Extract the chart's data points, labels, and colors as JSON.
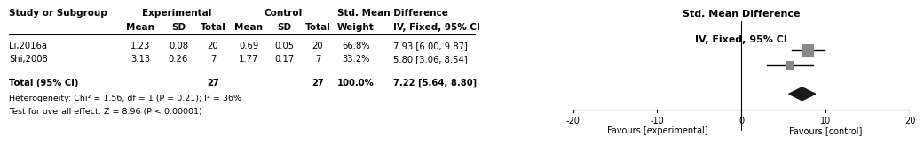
{
  "studies": [
    {
      "name": "Li,2016a",
      "exp_mean": "1.23",
      "exp_sd": "0.08",
      "exp_total": "20",
      "ctrl_mean": "0.69",
      "ctrl_sd": "0.05",
      "ctrl_total": "20",
      "weight": "66.8%",
      "smd": 7.93,
      "ci_low": 6.0,
      "ci_high": 9.87,
      "smd_text": "7.93 [6.00, 9.87]",
      "weight_val": 66.8
    },
    {
      "name": "Shi,2008",
      "exp_mean": "3.13",
      "exp_sd": "0.26",
      "exp_total": "7",
      "ctrl_mean": "1.77",
      "ctrl_sd": "0.17",
      "ctrl_total": "7",
      "weight": "33.2%",
      "smd": 5.8,
      "ci_low": 3.06,
      "ci_high": 8.54,
      "smd_text": "5.80 [3.06, 8.54]",
      "weight_val": 33.2
    }
  ],
  "total": {
    "total_exp": "27",
    "total_ctrl": "27",
    "weight": "100.0%",
    "smd": 7.22,
    "ci_low": 5.64,
    "ci_high": 8.8,
    "smd_text": "7.22 [5.64, 8.80]"
  },
  "heterogeneity_text": "Heterogeneity: Chi² = 1.56, df = 1 (P = 0.21); I² = 36%",
  "overall_effect_text": "Test for overall effect: Z = 8.96 (P < 0.00001)",
  "axis_min": -20,
  "axis_max": 20,
  "axis_ticks": [
    -20,
    -10,
    0,
    10,
    20
  ],
  "favours_left": "Favours [experimental]",
  "favours_right": "Favours [control]",
  "square_color_study": "#888888",
  "diamond_color": "#1a1a1a",
  "line_color": "#000000",
  "text_color": "#000000",
  "background_color": "#ffffff",
  "col_header1_exp": "Experimental",
  "col_header1_ctrl": "Control",
  "col_header1_smd": "Std. Mean Difference",
  "col_header2_smd": "IV, Fixed, 95% CI",
  "plot_header1": "Std. Mean Difference",
  "plot_header2": "IV, Fixed, 95% CI",
  "subheader_study": "Study or Subgroup",
  "subheader_mean": "Mean",
  "subheader_sd": "SD",
  "subheader_total": "Total",
  "subheader_weight": "Weight"
}
